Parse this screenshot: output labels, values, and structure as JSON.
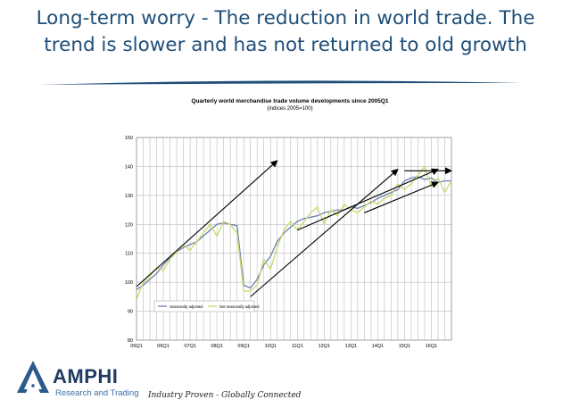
{
  "slide": {
    "title_line1": "Long-term worry - The reduction in world trade. The",
    "title_line2": "trend is slower and has not returned to old growth"
  },
  "colors": {
    "title": "#1f4e79",
    "seasonally_adjusted": "#6b7fb3",
    "not_seasonally_adjusted": "#c8d96a",
    "grid": "#bbbbbb",
    "arrow": "#000000"
  },
  "chart_data": {
    "type": "line",
    "title": "Quarterly world merchandise trade volume developments since 2005Q1",
    "subtitle": "(indices 2005=100)",
    "ylim": [
      80,
      150
    ],
    "yticks": [
      80,
      90,
      100,
      110,
      120,
      130,
      140,
      150
    ],
    "x_range": [
      "05Q1",
      "16Q4"
    ],
    "x_tick_labels": [
      "05Q1",
      "06Q1",
      "07Q1",
      "08Q1",
      "09Q1",
      "10Q1",
      "11Q1",
      "12Q1",
      "13Q1",
      "14Q1",
      "15Q1",
      "16Q1"
    ],
    "grid": "on",
    "legend_placement": "bottom-left",
    "series": [
      {
        "name": "Seasonally adjusted",
        "x": [
          "05Q1",
          "05Q2",
          "05Q3",
          "05Q4",
          "06Q1",
          "06Q2",
          "06Q3",
          "06Q4",
          "07Q1",
          "07Q2",
          "07Q3",
          "07Q4",
          "08Q1",
          "08Q2",
          "08Q3",
          "08Q4",
          "09Q1",
          "09Q2",
          "09Q3",
          "09Q4",
          "10Q1",
          "10Q2",
          "10Q3",
          "10Q4",
          "11Q1",
          "11Q2",
          "11Q3",
          "11Q4",
          "12Q1",
          "12Q2",
          "12Q3",
          "12Q4",
          "13Q1",
          "13Q2",
          "13Q3",
          "13Q4",
          "14Q1",
          "14Q2",
          "14Q3",
          "14Q4",
          "15Q1",
          "15Q2",
          "15Q3",
          "15Q4",
          "16Q1",
          "16Q2",
          "16Q3",
          "16Q4"
        ],
        "values": [
          97.5,
          99,
          101,
          103,
          106,
          108.5,
          110.5,
          112,
          113,
          114,
          116,
          118,
          120,
          120.5,
          120,
          119.5,
          99,
          98,
          101,
          106,
          109,
          114,
          117,
          119,
          121,
          122,
          122.5,
          123,
          124,
          124.5,
          125,
          125,
          126,
          125.5,
          126.5,
          127.5,
          129,
          130,
          131,
          132,
          135,
          136,
          136.5,
          135.5,
          136,
          134.5,
          135,
          135
        ]
      },
      {
        "name": "Not seasonally adjusted",
        "x": [
          "05Q1",
          "05Q2",
          "05Q3",
          "05Q4",
          "06Q1",
          "06Q2",
          "06Q3",
          "06Q4",
          "07Q1",
          "07Q2",
          "07Q3",
          "07Q4",
          "08Q1",
          "08Q2",
          "08Q3",
          "08Q4",
          "09Q1",
          "09Q2",
          "09Q3",
          "09Q4",
          "10Q1",
          "10Q2",
          "10Q3",
          "10Q4",
          "11Q1",
          "11Q2",
          "11Q3",
          "11Q4",
          "12Q1",
          "12Q2",
          "12Q3",
          "12Q4",
          "13Q1",
          "13Q2",
          "13Q3",
          "13Q4",
          "14Q1",
          "14Q2",
          "14Q3",
          "14Q4",
          "15Q1",
          "15Q2",
          "15Q3",
          "15Q4",
          "16Q1",
          "16Q2",
          "16Q3",
          "16Q4"
        ],
        "values": [
          94,
          100,
          102,
          105,
          104,
          108,
          110.5,
          113,
          111,
          114,
          117,
          120,
          116,
          121,
          120,
          117,
          97,
          97,
          99,
          108,
          104.5,
          112,
          118,
          121,
          118,
          121,
          124,
          126,
          120,
          125,
          123,
          127,
          125,
          124,
          126,
          128,
          127,
          129,
          130,
          134,
          132,
          134,
          137,
          140,
          133,
          136,
          131,
          135
        ]
      }
    ],
    "annotations": {
      "arrows": [
        {
          "from": {
            "x": "05Q1",
            "y": 98.5
          },
          "to": {
            "x": "10Q2",
            "y": 142
          }
        },
        {
          "from": {
            "x": "09Q2",
            "y": 95
          },
          "to": {
            "x": "14Q4",
            "y": 139
          }
        },
        {
          "from": {
            "x": "11Q1",
            "y": 118
          },
          "to": {
            "x": "16Q2",
            "y": 139
          }
        },
        {
          "from": {
            "x": "13Q3",
            "y": 124
          },
          "to": {
            "x": "16Q2",
            "y": 134.5
          }
        },
        {
          "from": {
            "x": "15Q1",
            "y": 138.5
          },
          "to": {
            "x": "16Q4",
            "y": 138.5
          }
        }
      ]
    }
  },
  "brand": {
    "name": "AMPHI",
    "subtitle": "Research and Trading",
    "tagline": "Industry Proven - Globally Connected"
  }
}
